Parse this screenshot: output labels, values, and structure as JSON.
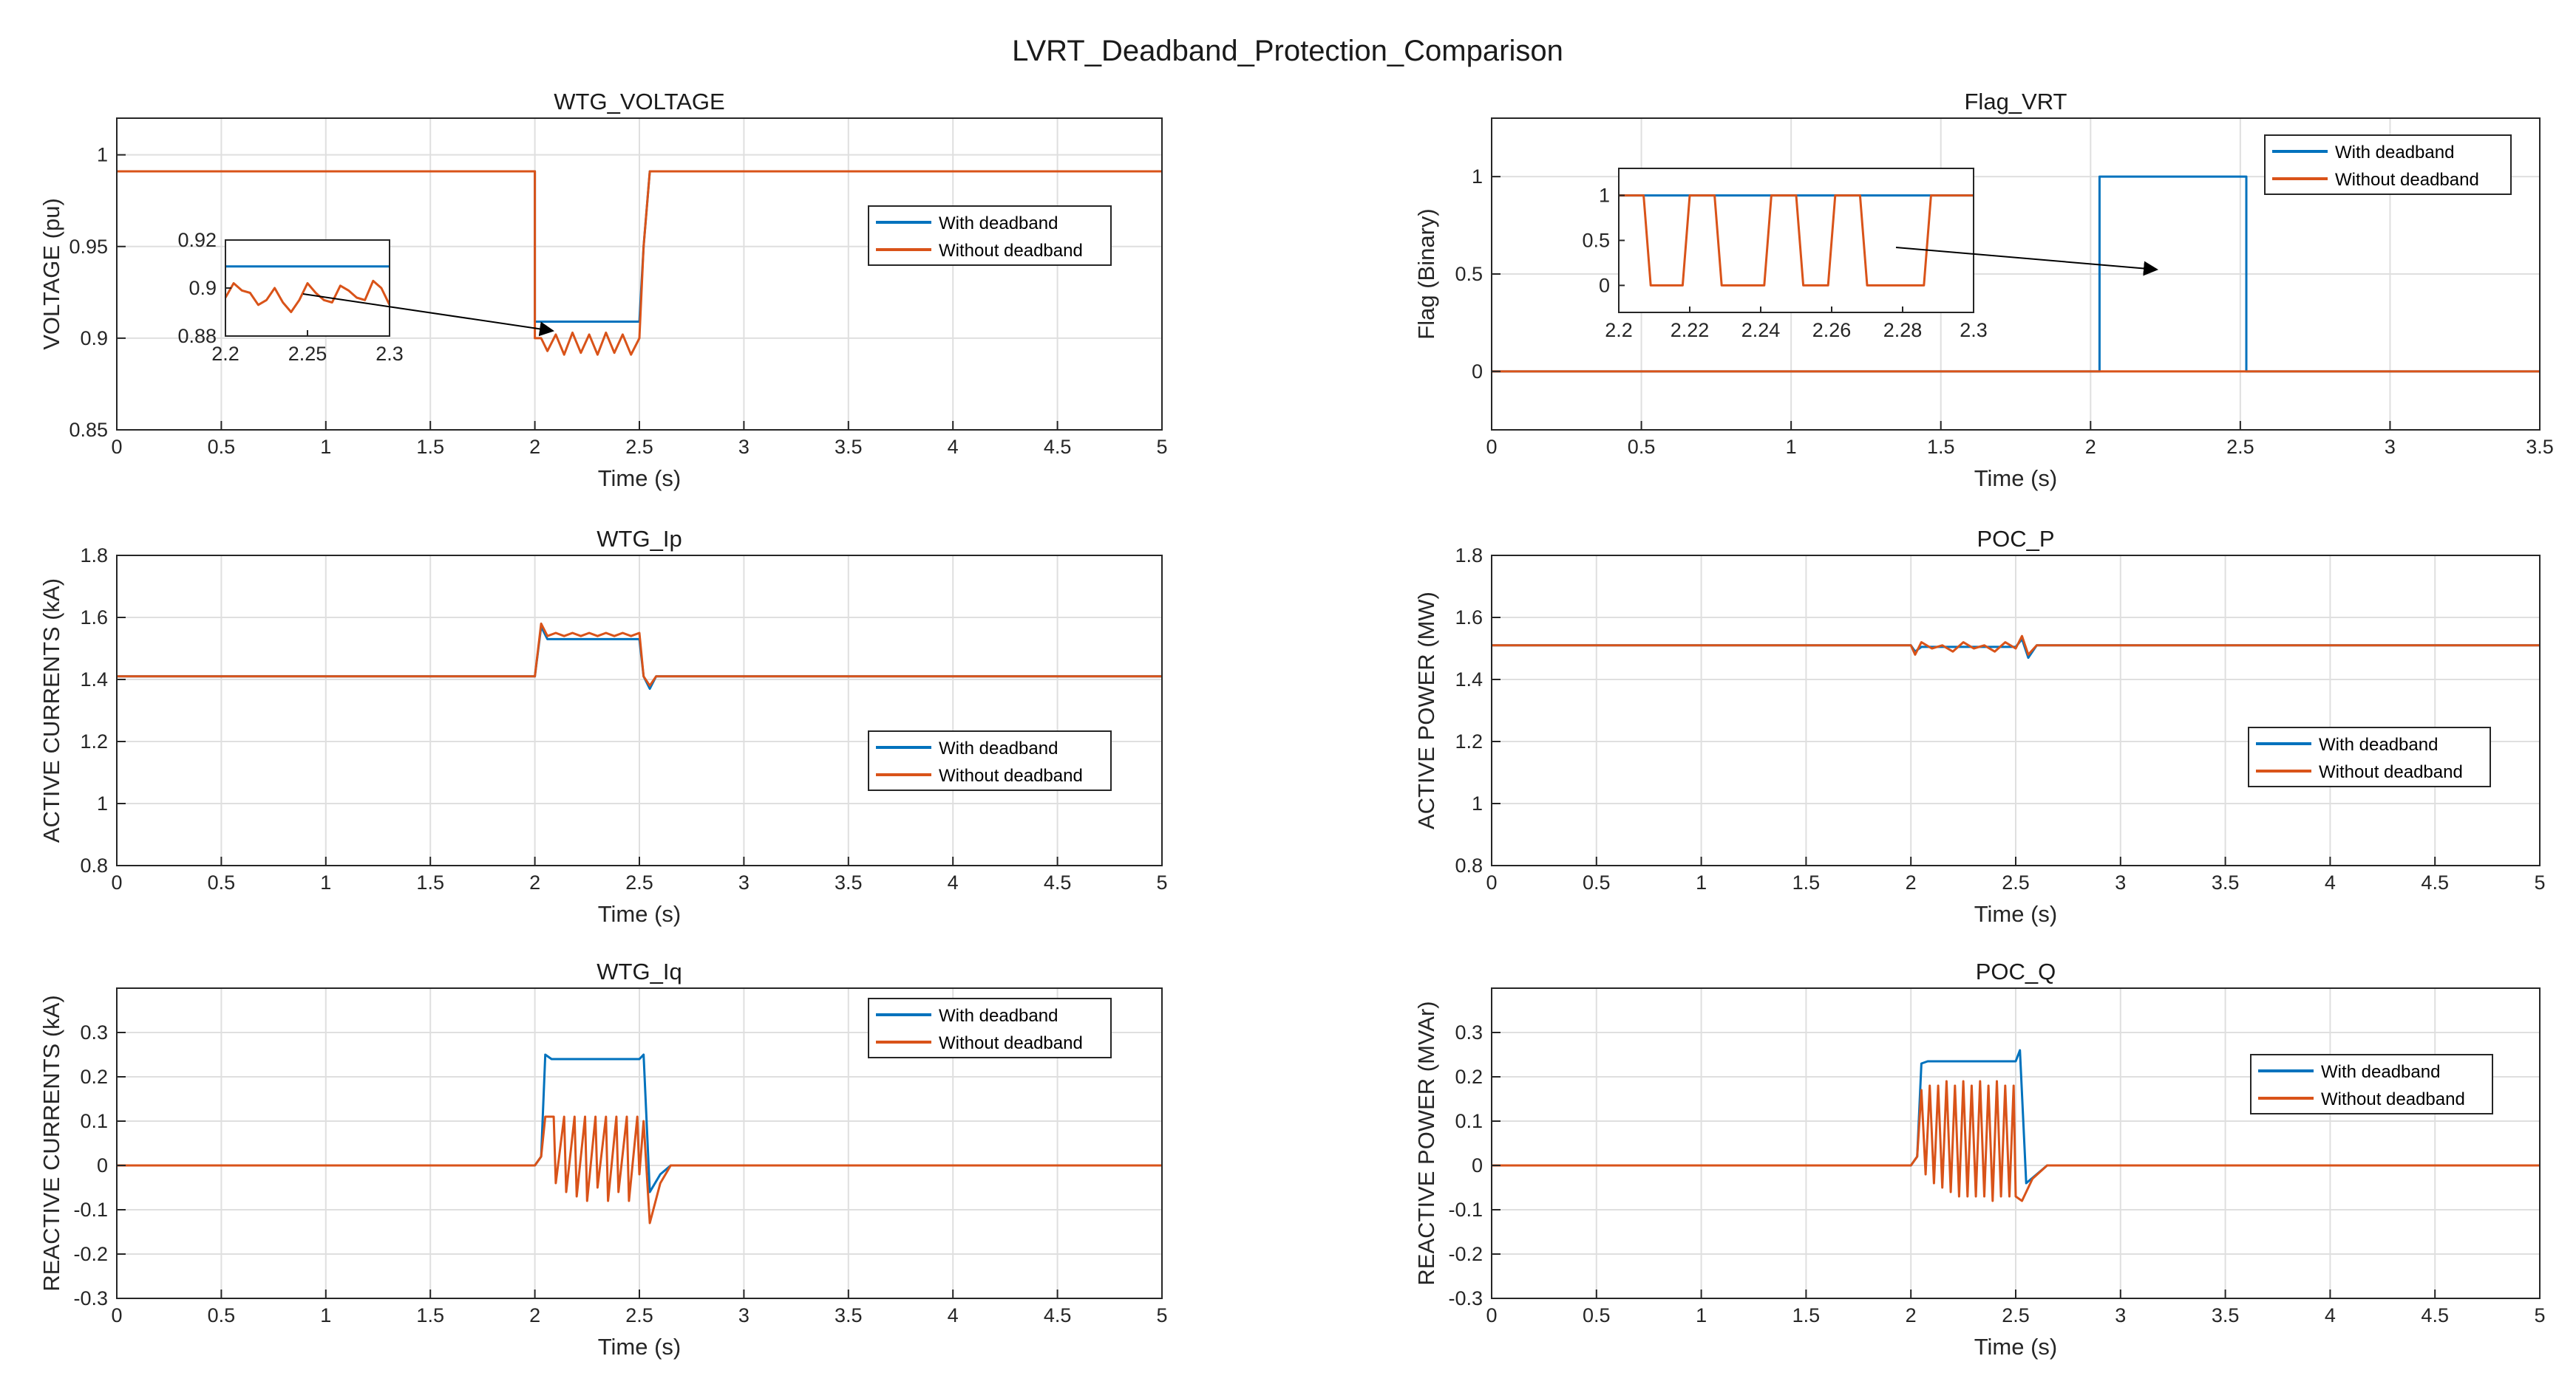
{
  "figure_title": "LVRT_Deadband_Protection_Comparison",
  "colors": {
    "with_deadband": "#0072BD",
    "without_deadband": "#D95319",
    "grid": "#dfdfdf",
    "axis": "#262626"
  },
  "chart_data": [
    {
      "type": "line",
      "title": "WTG_VOLTAGE",
      "xlabel": "Time (s)",
      "ylabel": "VOLTAGE (pu)",
      "xlim": [
        0,
        5
      ],
      "ylim": [
        0.85,
        1.02
      ],
      "xticks": [
        0,
        0.5,
        1,
        1.5,
        2,
        2.5,
        3,
        3.5,
        4,
        4.5,
        5
      ],
      "xtick_labels": [
        "0",
        "0.5",
        "1",
        "1.5",
        "2",
        "2.5",
        "3",
        "3.5",
        "4",
        "4.5",
        "5"
      ],
      "yticks": [
        0.85,
        0.9,
        0.95,
        1
      ],
      "ytick_labels": [
        "0.85",
        "0.9",
        "0.95",
        "1"
      ],
      "legend": [
        "With deadband",
        "Without deadband"
      ],
      "series": [
        {
          "name": "With deadband",
          "x": [
            0,
            2.0,
            2.0,
            2.03,
            2.5,
            2.52,
            2.55,
            5
          ],
          "y": [
            0.991,
            0.991,
            0.909,
            0.909,
            0.909,
            0.95,
            0.991,
            0.991
          ]
        },
        {
          "name": "Without deadband",
          "x": [
            0,
            2.0,
            2.0,
            2.03,
            2.06,
            2.1,
            2.14,
            2.18,
            2.22,
            2.26,
            2.3,
            2.34,
            2.38,
            2.42,
            2.46,
            2.5,
            2.52,
            2.55,
            5
          ],
          "y": [
            0.991,
            0.991,
            0.9,
            0.9,
            0.893,
            0.902,
            0.891,
            0.903,
            0.892,
            0.902,
            0.891,
            0.903,
            0.892,
            0.902,
            0.891,
            0.9,
            0.95,
            0.991,
            0.991
          ]
        }
      ],
      "inset": {
        "xlim": [
          2.2,
          2.3
        ],
        "ylim": [
          0.88,
          0.92
        ],
        "xticks": [
          2.2,
          2.25,
          2.3
        ],
        "xtick_labels": [
          "2.2",
          "2.25",
          "2.3"
        ],
        "yticks": [
          0.88,
          0.9,
          0.92
        ],
        "ytick_labels": [
          "0.88",
          "0.9",
          "0.92"
        ],
        "series": [
          {
            "name": "With deadband",
            "x": [
              2.2,
              2.3
            ],
            "y": [
              0.909,
              0.909
            ]
          },
          {
            "name": "Without deadband",
            "x": [
              2.2,
              2.205,
              2.21,
              2.215,
              2.22,
              2.225,
              2.23,
              2.235,
              2.24,
              2.245,
              2.25,
              2.255,
              2.26,
              2.265,
              2.27,
              2.275,
              2.28,
              2.285,
              2.29,
              2.295,
              2.3
            ],
            "y": [
              0.896,
              0.902,
              0.899,
              0.898,
              0.893,
              0.895,
              0.9,
              0.894,
              0.89,
              0.895,
              0.902,
              0.898,
              0.895,
              0.894,
              0.901,
              0.899,
              0.896,
              0.895,
              0.903,
              0.9,
              0.893
            ]
          }
        ]
      }
    },
    {
      "type": "line",
      "title": "Flag_VRT",
      "xlabel": "Time (s)",
      "ylabel": "Flag (Binary)",
      "xlim": [
        0,
        3.5
      ],
      "ylim": [
        -0.3,
        1.3
      ],
      "xticks": [
        0,
        0.5,
        1,
        1.5,
        2,
        2.5,
        3,
        3.5
      ],
      "xtick_labels": [
        "0",
        "0.5",
        "1",
        "1.5",
        "2",
        "2.5",
        "3",
        "3.5"
      ],
      "yticks": [
        0,
        0.5,
        1
      ],
      "ytick_labels": [
        "0",
        "0.5",
        "1"
      ],
      "legend": [
        "With deadband",
        "Without deadband"
      ],
      "series": [
        {
          "name": "With deadband",
          "x": [
            0,
            2.03,
            2.03,
            2.52,
            2.52,
            3.5
          ],
          "y": [
            0,
            0,
            1,
            1,
            0,
            0
          ]
        },
        {
          "name": "Without deadband",
          "x": [
            0,
            2.03,
            2.52,
            3.5
          ],
          "y": [
            0,
            0,
            0,
            0
          ]
        }
      ],
      "inset": {
        "xlim": [
          2.2,
          2.3
        ],
        "ylim": [
          -0.3,
          1.3
        ],
        "xticks": [
          2.2,
          2.22,
          2.24,
          2.26,
          2.28,
          2.3
        ],
        "xtick_labels": [
          "2.2",
          "2.22",
          "2.24",
          "2.26",
          "2.28",
          "2.3"
        ],
        "yticks": [
          0,
          0.5,
          1
        ],
        "ytick_labels": [
          "0",
          "0.5",
          "1"
        ],
        "series": [
          {
            "name": "With deadband",
            "x": [
              2.2,
              2.3
            ],
            "y": [
              1,
              1
            ]
          },
          {
            "name": "Without deadband",
            "x": [
              2.2,
              2.207,
              2.209,
              2.218,
              2.22,
              2.227,
              2.229,
              2.241,
              2.243,
              2.25,
              2.252,
              2.259,
              2.261,
              2.268,
              2.27,
              2.286,
              2.288,
              2.3
            ],
            "y": [
              1,
              1,
              0,
              0,
              1,
              1,
              0,
              0,
              1,
              1,
              0,
              0,
              1,
              1,
              0,
              0,
              1,
              1
            ]
          }
        ]
      }
    },
    {
      "type": "line",
      "title": "WTG_Ip",
      "xlabel": "Time (s)",
      "ylabel": "ACTIVE CURRENTS (kA)",
      "xlim": [
        0,
        5
      ],
      "ylim": [
        0.8,
        1.8
      ],
      "xticks": [
        0,
        0.5,
        1,
        1.5,
        2,
        2.5,
        3,
        3.5,
        4,
        4.5,
        5
      ],
      "xtick_labels": [
        "0",
        "0.5",
        "1",
        "1.5",
        "2",
        "2.5",
        "3",
        "3.5",
        "4",
        "4.5",
        "5"
      ],
      "yticks": [
        0.8,
        1,
        1.2,
        1.4,
        1.6,
        1.8
      ],
      "ytick_labels": [
        "0.8",
        "1",
        "1.2",
        "1.4",
        "1.6",
        "1.8"
      ],
      "legend": [
        "With deadband",
        "Without deadband"
      ],
      "series": [
        {
          "name": "With deadband",
          "x": [
            0,
            2.0,
            2.03,
            2.06,
            2.1,
            2.5,
            2.52,
            2.55,
            2.58,
            5
          ],
          "y": [
            1.41,
            1.41,
            1.57,
            1.53,
            1.53,
            1.53,
            1.41,
            1.37,
            1.41,
            1.41
          ]
        },
        {
          "name": "Without deadband",
          "x": [
            0,
            2.0,
            2.03,
            2.06,
            2.1,
            2.14,
            2.18,
            2.22,
            2.26,
            2.3,
            2.34,
            2.38,
            2.42,
            2.46,
            2.5,
            2.52,
            2.55,
            2.58,
            5
          ],
          "y": [
            1.41,
            1.41,
            1.58,
            1.54,
            1.55,
            1.54,
            1.55,
            1.54,
            1.55,
            1.54,
            1.55,
            1.54,
            1.55,
            1.54,
            1.55,
            1.41,
            1.38,
            1.41,
            1.41
          ]
        }
      ]
    },
    {
      "type": "line",
      "title": "POC_P",
      "xlabel": "Time (s)",
      "ylabel": "ACTIVE POWER (MW)",
      "xlim": [
        0,
        5
      ],
      "ylim": [
        0.8,
        1.8
      ],
      "xticks": [
        0,
        0.5,
        1,
        1.5,
        2,
        2.5,
        3,
        3.5,
        4,
        4.5,
        5
      ],
      "xtick_labels": [
        "0",
        "0.5",
        "1",
        "1.5",
        "2",
        "2.5",
        "3",
        "3.5",
        "4",
        "4.5",
        "5"
      ],
      "yticks": [
        0.8,
        1,
        1.2,
        1.4,
        1.6,
        1.8
      ],
      "ytick_labels": [
        "0.8",
        "1",
        "1.2",
        "1.4",
        "1.6",
        "1.8"
      ],
      "legend": [
        "With deadband",
        "Without deadband"
      ],
      "series": [
        {
          "name": "With deadband",
          "x": [
            0,
            2.0,
            2.02,
            2.05,
            2.5,
            2.53,
            2.56,
            2.6,
            5
          ],
          "y": [
            1.51,
            1.51,
            1.49,
            1.505,
            1.505,
            1.53,
            1.47,
            1.51,
            1.51
          ]
        },
        {
          "name": "Without deadband",
          "x": [
            0,
            2.0,
            2.02,
            2.05,
            2.1,
            2.15,
            2.2,
            2.25,
            2.3,
            2.35,
            2.4,
            2.45,
            2.5,
            2.53,
            2.56,
            2.6,
            5
          ],
          "y": [
            1.51,
            1.51,
            1.48,
            1.52,
            1.5,
            1.51,
            1.49,
            1.52,
            1.5,
            1.51,
            1.49,
            1.52,
            1.5,
            1.54,
            1.48,
            1.51,
            1.51
          ]
        }
      ]
    },
    {
      "type": "line",
      "title": "WTG_Iq",
      "xlabel": "Time (s)",
      "ylabel": "REACTIVE CURRENTS (kA)",
      "xlim": [
        0,
        5
      ],
      "ylim": [
        -0.3,
        0.4
      ],
      "xticks": [
        0,
        0.5,
        1,
        1.5,
        2,
        2.5,
        3,
        3.5,
        4,
        4.5,
        5
      ],
      "xtick_labels": [
        "0",
        "0.5",
        "1",
        "1.5",
        "2",
        "2.5",
        "3",
        "3.5",
        "4",
        "4.5",
        "5"
      ],
      "yticks": [
        -0.3,
        -0.2,
        -0.1,
        0,
        0.1,
        0.2,
        0.3
      ],
      "ytick_labels": [
        "-0.3",
        "-0.2",
        "-0.1",
        "0",
        "0.1",
        "0.2",
        "0.3"
      ],
      "legend": [
        "With deadband",
        "Without deadband"
      ],
      "series": [
        {
          "name": "With deadband",
          "x": [
            0,
            2.0,
            2.03,
            2.05,
            2.08,
            2.5,
            2.52,
            2.55,
            2.6,
            2.65,
            5
          ],
          "y": [
            0,
            0,
            0.02,
            0.25,
            0.24,
            0.24,
            0.25,
            -0.06,
            -0.02,
            0,
            0
          ]
        },
        {
          "name": "Without deadband",
          "x": [
            0,
            2.0,
            2.03,
            2.05,
            2.09,
            2.1,
            2.14,
            2.15,
            2.19,
            2.2,
            2.24,
            2.25,
            2.29,
            2.3,
            2.34,
            2.35,
            2.39,
            2.4,
            2.44,
            2.45,
            2.49,
            2.5,
            2.52,
            2.55,
            2.6,
            2.65,
            5
          ],
          "y": [
            0,
            0,
            0.02,
            0.11,
            0.11,
            -0.04,
            0.11,
            -0.06,
            0.11,
            -0.07,
            0.11,
            -0.08,
            0.11,
            -0.05,
            0.11,
            -0.08,
            0.11,
            -0.06,
            0.11,
            -0.08,
            0.11,
            -0.02,
            0.1,
            -0.13,
            -0.04,
            0,
            0
          ]
        }
      ]
    },
    {
      "type": "line",
      "title": "POC_Q",
      "xlabel": "Time (s)",
      "ylabel": "REACTIVE POWER (MVAr)",
      "xlim": [
        0,
        5
      ],
      "ylim": [
        -0.3,
        0.4
      ],
      "xticks": [
        0,
        0.5,
        1,
        1.5,
        2,
        2.5,
        3,
        3.5,
        4,
        4.5,
        5
      ],
      "xtick_labels": [
        "0",
        "0.5",
        "1",
        "1.5",
        "2",
        "2.5",
        "3",
        "3.5",
        "4",
        "4.5",
        "5"
      ],
      "yticks": [
        -0.3,
        -0.2,
        -0.1,
        0,
        0.1,
        0.2,
        0.3
      ],
      "ytick_labels": [
        "-0.3",
        "-0.2",
        "-0.1",
        "0",
        "0.1",
        "0.2",
        "0.3"
      ],
      "legend": [
        "With deadband",
        "Without deadband"
      ],
      "series": [
        {
          "name": "With deadband",
          "x": [
            0,
            2.0,
            2.03,
            2.05,
            2.08,
            2.5,
            2.52,
            2.55,
            2.6,
            2.65,
            5
          ],
          "y": [
            0,
            0,
            0.02,
            0.23,
            0.235,
            0.235,
            0.26,
            -0.04,
            -0.02,
            0,
            0
          ]
        },
        {
          "name": "Without deadband",
          "x": [
            0,
            2.0,
            2.03,
            2.05,
            2.07,
            2.09,
            2.11,
            2.13,
            2.15,
            2.17,
            2.19,
            2.21,
            2.23,
            2.25,
            2.27,
            2.29,
            2.31,
            2.33,
            2.35,
            2.37,
            2.39,
            2.41,
            2.43,
            2.45,
            2.47,
            2.49,
            2.5,
            2.53,
            2.58,
            2.65,
            5
          ],
          "y": [
            0,
            0,
            0.02,
            0.17,
            -0.02,
            0.18,
            -0.04,
            0.18,
            -0.05,
            0.19,
            -0.06,
            0.18,
            -0.07,
            0.19,
            -0.07,
            0.18,
            -0.07,
            0.19,
            -0.07,
            0.18,
            -0.08,
            0.19,
            -0.07,
            0.18,
            -0.07,
            0.18,
            -0.07,
            -0.08,
            -0.03,
            0,
            0
          ]
        }
      ]
    }
  ]
}
